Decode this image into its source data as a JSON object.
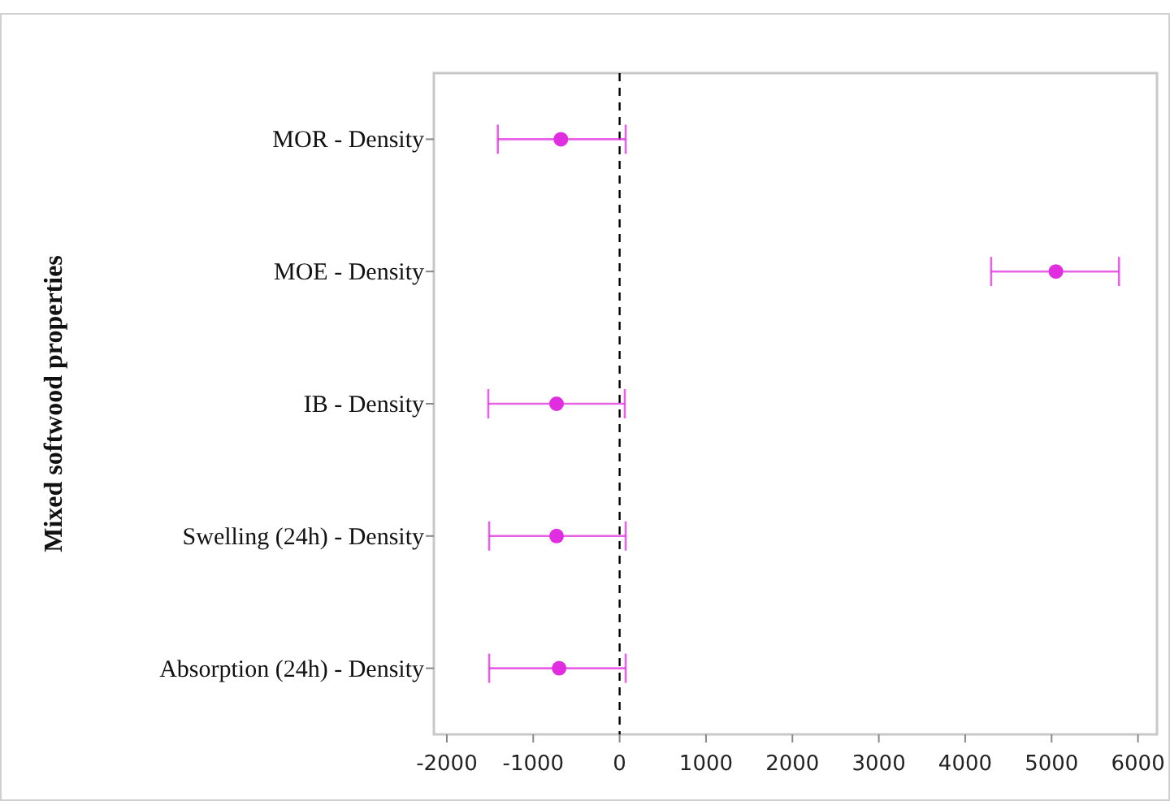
{
  "chart_data": {
    "type": "scatter",
    "orientation": "horizontal",
    "ylabel": "Mixed softwood properties",
    "categories": [
      "MOR - Density",
      "MOE - Density",
      "IB - Density",
      "Swelling (24h) - Density",
      "Absorption (24h) - Density"
    ],
    "values": [
      -680,
      5050,
      -730,
      -730,
      -700
    ],
    "errors": [
      [
        -1410,
        70
      ],
      [
        4300,
        5780
      ],
      [
        -1520,
        60
      ],
      [
        -1510,
        70
      ],
      [
        -1510,
        70
      ]
    ],
    "color": "#e02de0",
    "marker": "circle",
    "xlim": [
      -2150,
      6220
    ],
    "xticks": [
      -2000,
      -1000,
      0,
      1000,
      2000,
      3000,
      4000,
      5000,
      6000
    ],
    "ref_lines": [
      {
        "axis": "x",
        "value": 0,
        "line_style": "dashed",
        "color": "#000000"
      }
    ],
    "grid": false
  }
}
